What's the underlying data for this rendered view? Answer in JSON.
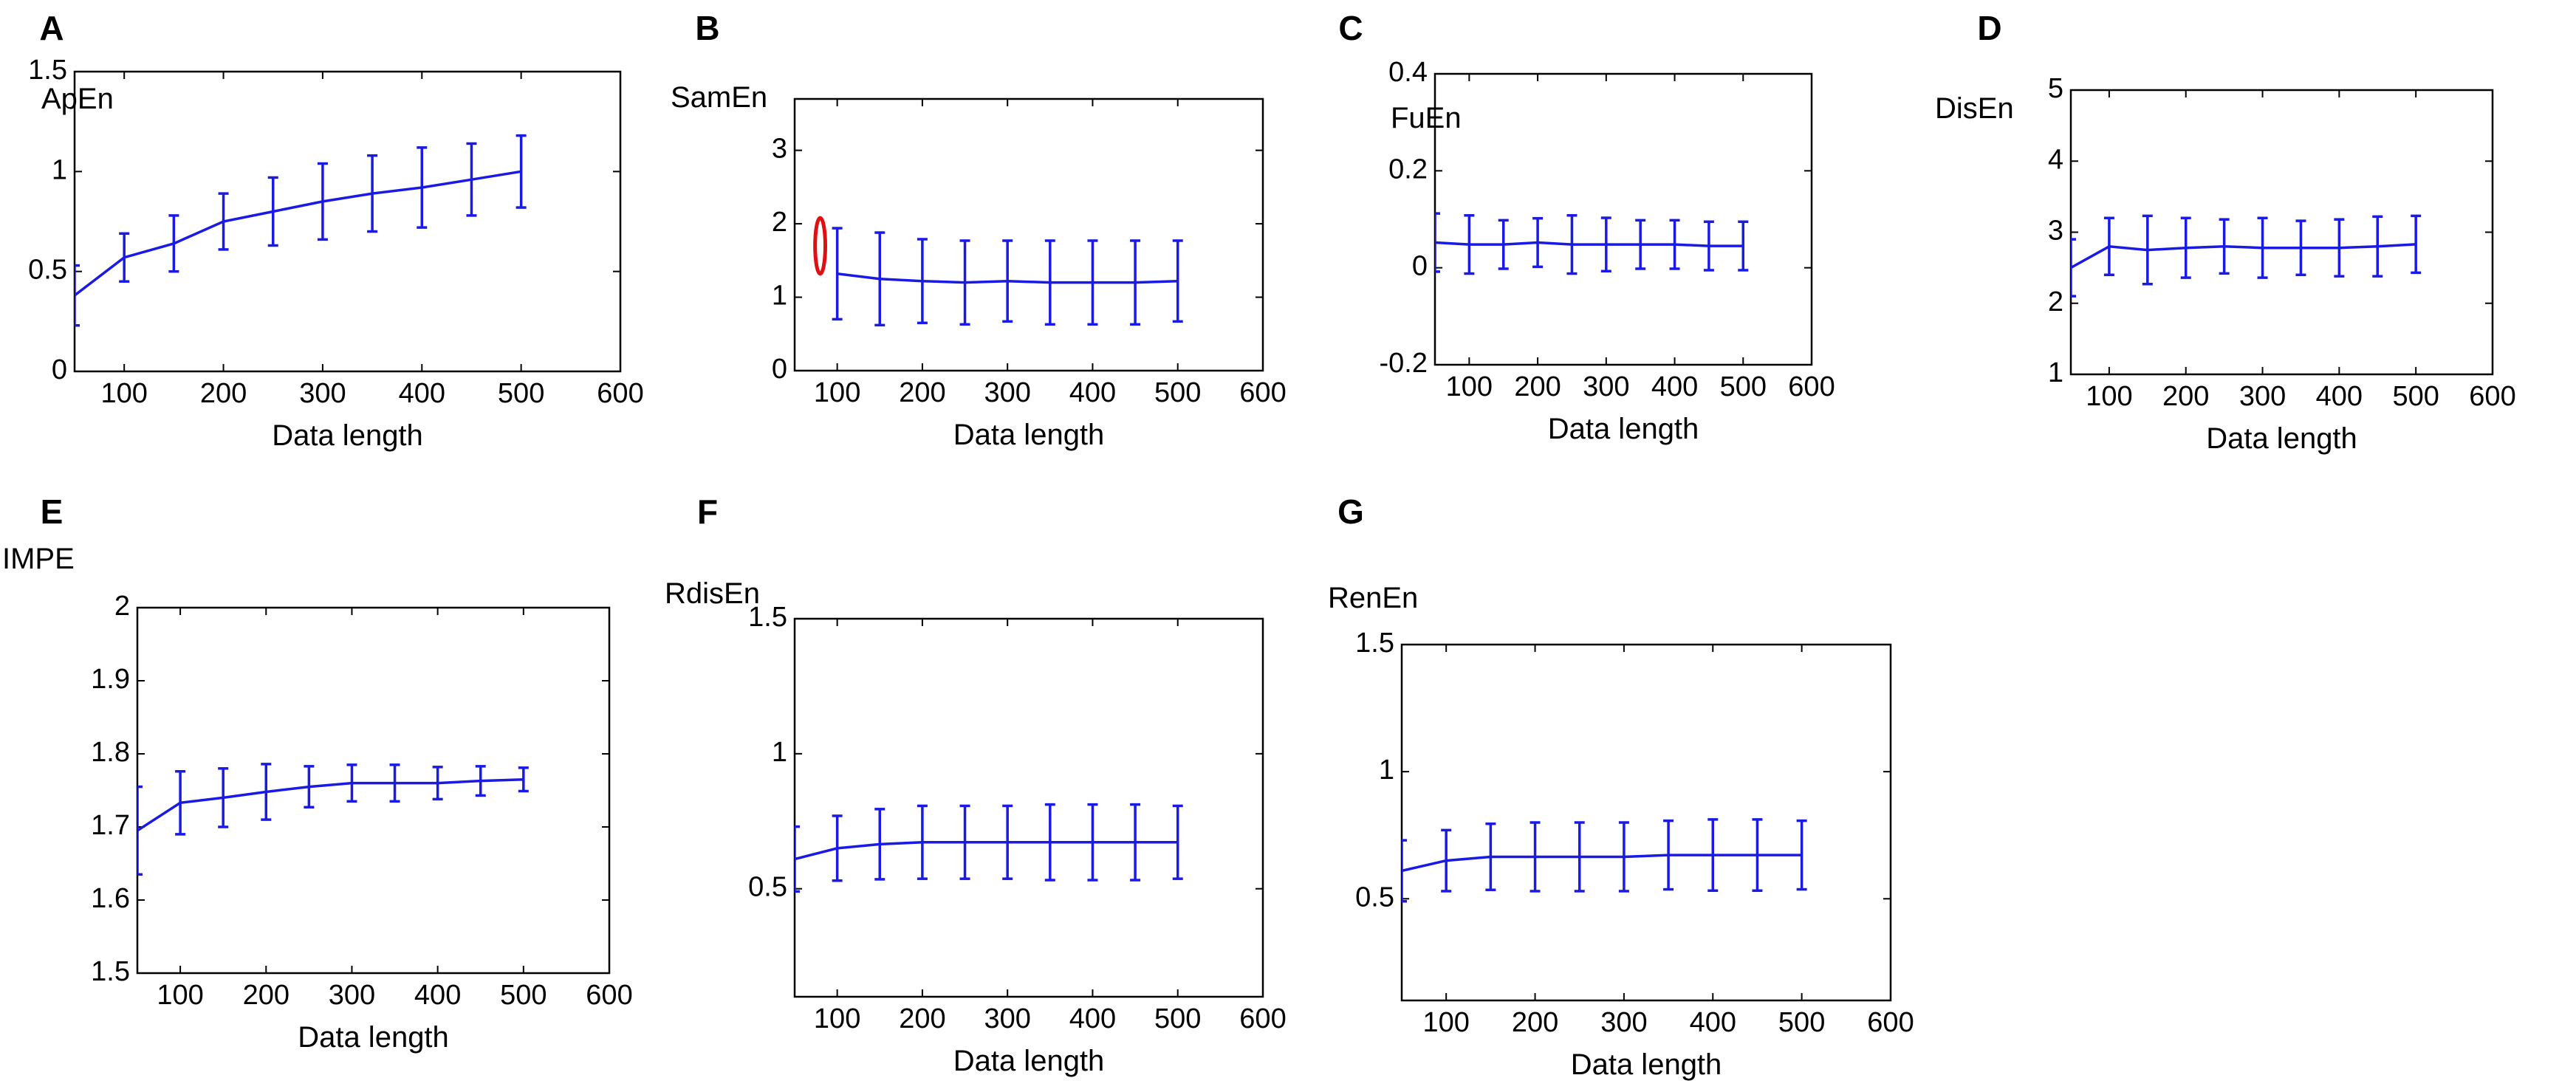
{
  "figure": {
    "colors": {
      "series": "#1a1ae6",
      "annotation": "#e01010",
      "axes": "#000000"
    }
  },
  "chart_data": [
    {
      "panel": "A",
      "type": "line",
      "ylabel": "ApEn",
      "xlabel": "Data length",
      "xlim": [
        50,
        600
      ],
      "ylim": [
        0,
        1.5
      ],
      "xticks": [
        100,
        200,
        300,
        400,
        500,
        600
      ],
      "xtick_labels": [
        "100",
        "200",
        "300",
        "400",
        "500",
        "600"
      ],
      "yticks": [
        0,
        0.5,
        1,
        1.5
      ],
      "ytick_labels": [
        "0",
        "0.5",
        "1",
        "1.5"
      ],
      "x": [
        50,
        100,
        150,
        200,
        250,
        300,
        350,
        400,
        450,
        500
      ],
      "y": [
        0.38,
        0.57,
        0.64,
        0.75,
        0.8,
        0.85,
        0.89,
        0.92,
        0.96,
        1.0
      ],
      "err": [
        0.15,
        0.12,
        0.14,
        0.14,
        0.17,
        0.19,
        0.19,
        0.2,
        0.18,
        0.18
      ],
      "grid": false
    },
    {
      "panel": "B",
      "type": "line",
      "ylabel": "SamEn",
      "xlabel": "Data length",
      "xlim": [
        50,
        600
      ],
      "ylim": [
        0,
        3.7
      ],
      "xticks": [
        100,
        200,
        300,
        400,
        500,
        600
      ],
      "xtick_labels": [
        "100",
        "200",
        "300",
        "400",
        "500",
        "600"
      ],
      "yticks": [
        0,
        1,
        2,
        3
      ],
      "ytick_labels": [
        "0",
        "1",
        "2",
        "3"
      ],
      "x": [
        100,
        150,
        200,
        250,
        300,
        350,
        400,
        450,
        500
      ],
      "y": [
        1.32,
        1.25,
        1.22,
        1.2,
        1.22,
        1.2,
        1.2,
        1.2,
        1.22
      ],
      "err": [
        0.62,
        0.63,
        0.57,
        0.57,
        0.55,
        0.57,
        0.57,
        0.57,
        0.55
      ],
      "annotation": {
        "type": "ellipse",
        "x": 80,
        "y": 1.7,
        "rx": 6,
        "ry": 0.38
      },
      "grid": false
    },
    {
      "panel": "C",
      "type": "line",
      "ylabel": "FuEn",
      "xlabel": "Data length",
      "xlim": [
        50,
        600
      ],
      "ylim": [
        -0.2,
        0.4
      ],
      "xticks": [
        100,
        200,
        300,
        400,
        500,
        600
      ],
      "xtick_labels": [
        "100",
        "200",
        "300",
        "400",
        "500",
        "600"
      ],
      "yticks": [
        -0.2,
        0,
        0.2,
        0.4
      ],
      "ytick_labels": [
        "-0.2",
        "0",
        "0.2",
        "0.4"
      ],
      "x": [
        50,
        100,
        150,
        200,
        250,
        300,
        350,
        400,
        450,
        500
      ],
      "y": [
        0.052,
        0.048,
        0.048,
        0.052,
        0.048,
        0.048,
        0.048,
        0.048,
        0.045,
        0.045
      ],
      "err": [
        0.06,
        0.06,
        0.05,
        0.05,
        0.06,
        0.055,
        0.05,
        0.05,
        0.05,
        0.05
      ],
      "grid": false
    },
    {
      "panel": "D",
      "type": "line",
      "ylabel": "DisEn",
      "xlabel": "Data length",
      "xlim": [
        50,
        600
      ],
      "ylim": [
        1,
        5
      ],
      "xticks": [
        100,
        200,
        300,
        400,
        500,
        600
      ],
      "xtick_labels": [
        "100",
        "200",
        "300",
        "400",
        "500",
        "600"
      ],
      "yticks": [
        1,
        2,
        3,
        4,
        5
      ],
      "ytick_labels": [
        "1",
        "2",
        "3",
        "4",
        "5"
      ],
      "x": [
        50,
        100,
        150,
        200,
        250,
        300,
        350,
        400,
        450,
        500
      ],
      "y": [
        2.5,
        2.8,
        2.75,
        2.78,
        2.8,
        2.78,
        2.78,
        2.78,
        2.8,
        2.83
      ],
      "err": [
        0.4,
        0.4,
        0.48,
        0.42,
        0.38,
        0.42,
        0.38,
        0.4,
        0.42,
        0.4
      ],
      "grid": false
    },
    {
      "panel": "E",
      "type": "line",
      "ylabel": "IMPE",
      "xlabel": "Data length",
      "xlim": [
        50,
        600
      ],
      "ylim": [
        1.5,
        2
      ],
      "xticks": [
        100,
        200,
        300,
        400,
        500,
        600
      ],
      "xtick_labels": [
        "100",
        "200",
        "300",
        "400",
        "500",
        "600"
      ],
      "yticks": [
        1.5,
        1.6,
        1.7,
        1.8,
        1.9,
        2
      ],
      "ytick_labels": [
        "1.5",
        "1.6",
        "1.7",
        "1.8",
        "1.9",
        "2"
      ],
      "x": [
        50,
        100,
        150,
        200,
        250,
        300,
        350,
        400,
        450,
        500
      ],
      "y": [
        1.695,
        1.733,
        1.74,
        1.748,
        1.755,
        1.76,
        1.76,
        1.76,
        1.763,
        1.765
      ],
      "err": [
        0.06,
        0.043,
        0.04,
        0.038,
        0.028,
        0.025,
        0.025,
        0.022,
        0.02,
        0.016
      ],
      "grid": false
    },
    {
      "panel": "F",
      "type": "line",
      "ylabel": "RdisEn",
      "xlabel": "Data length",
      "xlim": [
        50,
        600
      ],
      "ylim": [
        0.1,
        1.5
      ],
      "xticks": [
        100,
        200,
        300,
        400,
        500,
        600
      ],
      "xtick_labels": [
        "100",
        "200",
        "300",
        "400",
        "500",
        "600"
      ],
      "yticks": [
        0.5,
        1,
        1.5
      ],
      "ytick_labels": [
        "0.5",
        "1",
        "1.5"
      ],
      "x": [
        50,
        100,
        150,
        200,
        250,
        300,
        350,
        400,
        450,
        500
      ],
      "y": [
        0.61,
        0.65,
        0.665,
        0.672,
        0.672,
        0.672,
        0.672,
        0.672,
        0.672,
        0.672
      ],
      "err": [
        0.12,
        0.12,
        0.13,
        0.135,
        0.135,
        0.135,
        0.14,
        0.14,
        0.14,
        0.135
      ],
      "grid": false
    },
    {
      "panel": "G",
      "type": "line",
      "ylabel": "RenEn",
      "xlabel": "Data length",
      "xlim": [
        50,
        600
      ],
      "ylim": [
        0.1,
        1.5
      ],
      "xticks": [
        100,
        200,
        300,
        400,
        500,
        600
      ],
      "xtick_labels": [
        "100",
        "200",
        "300",
        "400",
        "500",
        "600"
      ],
      "yticks": [
        0.5,
        1,
        1.5
      ],
      "ytick_labels": [
        "0.5",
        "1",
        "1.5"
      ],
      "x": [
        50,
        100,
        150,
        200,
        250,
        300,
        350,
        400,
        450,
        500
      ],
      "y": [
        0.61,
        0.65,
        0.665,
        0.665,
        0.665,
        0.665,
        0.672,
        0.672,
        0.672,
        0.672
      ],
      "err": [
        0.12,
        0.12,
        0.13,
        0.135,
        0.135,
        0.135,
        0.135,
        0.14,
        0.14,
        0.135
      ],
      "grid": false
    }
  ]
}
